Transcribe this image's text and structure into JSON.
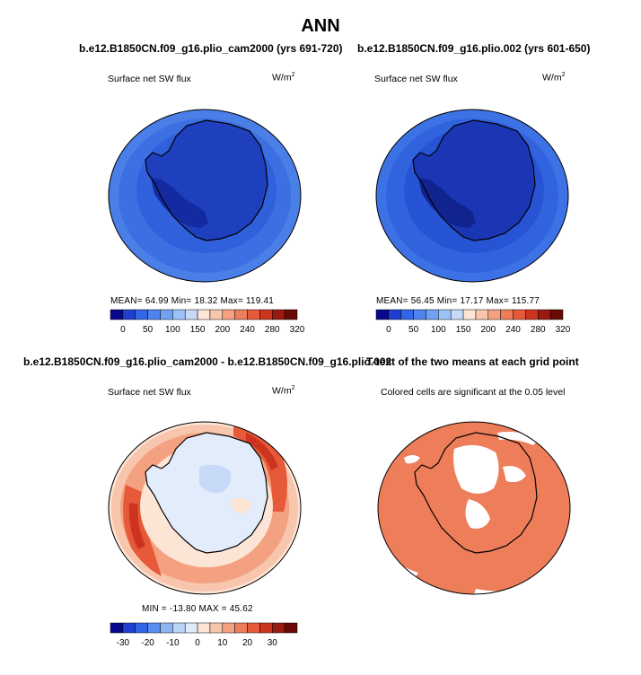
{
  "figure": {
    "title": "ANN",
    "panels": [
      {
        "header": "b.e12.B1850CN.f09_g16.plio_cam2000 (yrs 691-720)",
        "variable": "Surface net SW flux",
        "units": "W/m",
        "units_sup": "2",
        "stats": "MEAN=   64.99   Min=   18.32   Max=  119.41",
        "colorbar_ticks": [
          "0",
          "50",
          "100",
          "150",
          "200",
          "240",
          "280",
          "320"
        ],
        "colorbar_colors": [
          "#08088c",
          "#1f3fd0",
          "#3366e6",
          "#4d84ef",
          "#6fa1f5",
          "#9cc1f7",
          "#c6daf8",
          "#fde5d6",
          "#f8c5ad",
          "#f3a181",
          "#ee7d5a",
          "#e65a3a",
          "#cc3420",
          "#9a1a10",
          "#6a0a06"
        ]
      },
      {
        "header": "b.e12.B1850CN.f09_g16.plio.002 (yrs 601-650)",
        "variable": "Surface net SW flux",
        "units": "W/m",
        "units_sup": "2",
        "stats": "MEAN=   56.45   Min=   17.17   Max=  115.77",
        "colorbar_ticks": [
          "0",
          "50",
          "100",
          "150",
          "200",
          "240",
          "280",
          "320"
        ],
        "colorbar_colors": [
          "#08088c",
          "#1f3fd0",
          "#3366e6",
          "#4d84ef",
          "#6fa1f5",
          "#9cc1f7",
          "#c6daf8",
          "#fde5d6",
          "#f8c5ad",
          "#f3a181",
          "#ee7d5a",
          "#e65a3a",
          "#cc3420",
          "#9a1a10",
          "#6a0a06"
        ]
      },
      {
        "header": "b.e12.B1850CN.f09_g16.plio_cam2000 - b.e12.B1850CN.f09_g16.plio.002",
        "variable": "Surface net SW flux",
        "units": "W/m",
        "units_sup": "2",
        "stats": "MIN = -13.80  MAX =  45.62",
        "colorbar_ticks": [
          "-30",
          "-20",
          "-10",
          "0",
          "10",
          "20",
          "30"
        ],
        "colorbar_colors": [
          "#08088c",
          "#1f3fd0",
          "#3366e6",
          "#5a8ff0",
          "#8db4f5",
          "#bcd4f8",
          "#dfeafb",
          "#fde5d6",
          "#f8c5ad",
          "#f3a181",
          "#ee7d5a",
          "#e65a3a",
          "#cc3420",
          "#9a1a10",
          "#6a0a06"
        ]
      },
      {
        "header": "T-test of the two means at each grid point",
        "note": "Colored cells are significant at the 0.05 level"
      }
    ]
  },
  "chart_data": [
    {
      "type": "heatmap",
      "title": "b.e12.B1850CN.f09_g16.plio_cam2000 (yrs 691-720)",
      "variable": "Surface net SW flux",
      "units": "W/m2",
      "mean": 64.99,
      "min": 18.32,
      "max": 119.41,
      "colorbar_range": [
        0,
        320
      ]
    },
    {
      "type": "heatmap",
      "title": "b.e12.B1850CN.f09_g16.plio.002 (yrs 601-650)",
      "variable": "Surface net SW flux",
      "units": "W/m2",
      "mean": 56.45,
      "min": 17.17,
      "max": 115.77,
      "colorbar_range": [
        0,
        320
      ]
    },
    {
      "type": "heatmap",
      "title": "b.e12.B1850CN.f09_g16.plio_cam2000 - b.e12.B1850CN.f09_g16.plio.002",
      "variable": "Surface net SW flux",
      "units": "W/m2",
      "min": -13.8,
      "max": 45.62,
      "colorbar_range": [
        -35,
        35
      ]
    },
    {
      "type": "heatmap",
      "title": "T-test of the two means at each grid point",
      "note": "Colored cells are significant at the 0.05 level",
      "significance_level": 0.05
    }
  ]
}
